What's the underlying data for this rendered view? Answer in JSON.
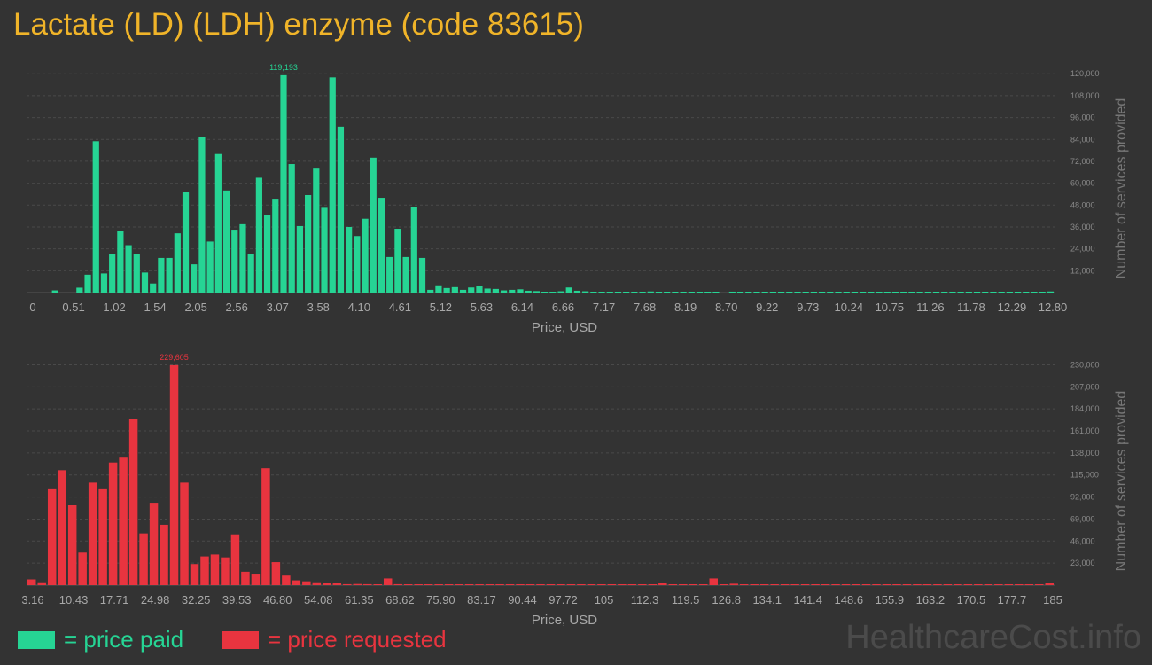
{
  "title": "Lactate (LD) (LDH) enzyme (code 83615)",
  "watermark": "HealthcareCost.info",
  "legend": {
    "paid_label": "= price paid",
    "requested_label": "= price requested",
    "paid_color": "#26d494",
    "requested_color": "#e8343f"
  },
  "chart_data": [
    {
      "type": "bar",
      "title": "",
      "xlabel": "Price, USD",
      "ylabel": "Number of services provided",
      "color": "#26d494",
      "x_tick_labels": [
        "0",
        "0.51",
        "1.02",
        "1.54",
        "2.05",
        "2.56",
        "3.07",
        "3.58",
        "4.10",
        "4.61",
        "5.12",
        "5.63",
        "6.14",
        "6.66",
        "7.17",
        "7.68",
        "8.19",
        "8.70",
        "9.22",
        "9.73",
        "10.24",
        "10.75",
        "11.26",
        "11.78",
        "12.29",
        "12.80"
      ],
      "y_ticks": [
        12000,
        24000,
        36000,
        48000,
        60000,
        72000,
        84000,
        96000,
        108000,
        120000
      ],
      "y_tick_labels": [
        "12,000",
        "24,000",
        "36,000",
        "48,000",
        "60,000",
        "72,000",
        "84,000",
        "96,000",
        "108,000",
        "120,000"
      ],
      "ylim": [
        0,
        124000
      ],
      "xlim": [
        0,
        12.8
      ],
      "bin_width": 0.1024,
      "peak_label": "119,193",
      "values": [
        0,
        0,
        0,
        1200,
        0,
        0,
        2700,
        9800,
        83000,
        10500,
        21000,
        34000,
        26000,
        21000,
        11000,
        5000,
        19000,
        19000,
        32500,
        55000,
        15500,
        85500,
        28000,
        76000,
        56000,
        34500,
        37500,
        21000,
        63000,
        42500,
        51500,
        119193,
        70500,
        36500,
        53500,
        68000,
        46500,
        118000,
        91000,
        36000,
        31000,
        40500,
        74000,
        52000,
        19500,
        35000,
        19500,
        47000,
        19000,
        1500,
        4000,
        2500,
        3000,
        1500,
        2800,
        3500,
        2200,
        2000,
        1200,
        1500,
        1800,
        1000,
        800,
        200,
        200,
        700,
        2800,
        1000,
        700,
        300,
        200,
        200,
        150,
        100,
        100,
        100,
        600,
        150,
        100,
        150,
        150,
        100,
        100,
        50,
        50,
        0,
        500,
        100,
        50,
        100,
        50,
        50,
        50,
        50,
        50,
        50,
        50,
        50,
        50,
        50,
        50,
        50,
        50,
        50,
        50,
        50,
        50,
        50,
        50,
        50,
        50,
        50,
        50,
        50,
        50,
        50,
        50,
        50,
        50,
        50,
        50,
        50,
        50,
        50,
        50,
        600
      ]
    },
    {
      "type": "bar",
      "title": "",
      "xlabel": "Price, USD",
      "ylabel": "Number of services provided",
      "color": "#e8343f",
      "x_tick_labels": [
        "3.16",
        "10.43",
        "17.71",
        "24.98",
        "32.25",
        "39.53",
        "46.80",
        "54.08",
        "61.35",
        "68.62",
        "75.90",
        "83.17",
        "90.44",
        "97.72",
        "105",
        "112.3",
        "119.5",
        "126.8",
        "134.1",
        "141.4",
        "148.6",
        "155.9",
        "163.2",
        "170.5",
        "177.7",
        "185"
      ],
      "y_ticks": [
        23000,
        46000,
        69000,
        92000,
        115000,
        138000,
        161000,
        184000,
        207000,
        230000
      ],
      "y_tick_labels": [
        "23,000",
        "46,000",
        "69,000",
        "92,000",
        "115,000",
        "138,000",
        "161,000",
        "184,000",
        "207,000",
        "230,000"
      ],
      "ylim": [
        0,
        236000
      ],
      "xlim": [
        3.16,
        185
      ],
      "bin_width": 1.818,
      "peak_label": "229,605",
      "values": [
        6000,
        3000,
        101000,
        120000,
        84000,
        34000,
        107000,
        101000,
        128000,
        134000,
        174000,
        54000,
        86000,
        63000,
        229605,
        107000,
        22000,
        30000,
        32000,
        29000,
        53000,
        14000,
        12000,
        122000,
        24000,
        10000,
        5000,
        4000,
        3000,
        2500,
        2000,
        1000,
        1200,
        1000,
        300,
        7000,
        1000,
        700,
        800,
        500,
        400,
        300,
        800,
        500,
        300,
        400,
        300,
        200,
        200,
        200,
        300,
        200,
        200,
        200,
        200,
        200,
        200,
        200,
        300,
        200,
        200,
        400,
        2500,
        200,
        200,
        200,
        200,
        7000,
        200,
        1500,
        200,
        200,
        200,
        300,
        200,
        200,
        200,
        200,
        200,
        200,
        200,
        200,
        200,
        200,
        200,
        200,
        200,
        200,
        300,
        200,
        200,
        200,
        200,
        200,
        200,
        200,
        200,
        200,
        200,
        200,
        2000
      ]
    }
  ]
}
